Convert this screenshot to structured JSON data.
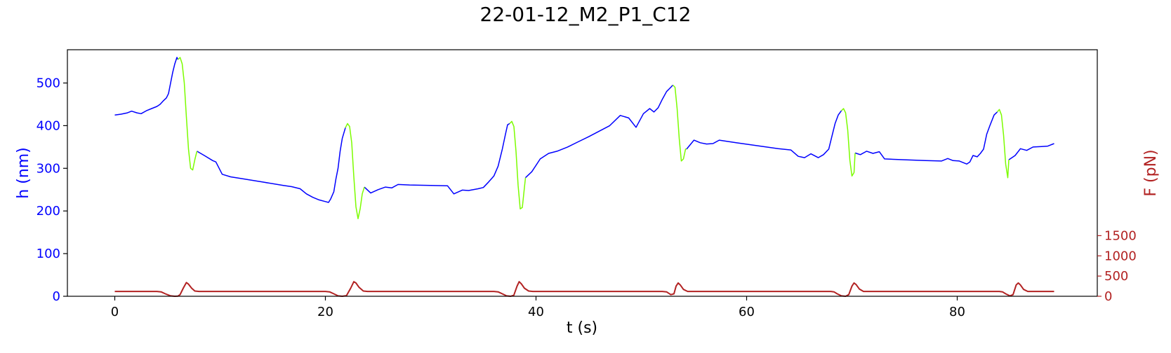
{
  "chart_data": {
    "type": "line",
    "title": "22-01-12_M2_P1_C12",
    "xlabel": "t (s)",
    "ylabel_left": "h (nm)",
    "ylabel_right": "F (pN)",
    "xlim": [
      -4.5,
      93.3
    ],
    "ylim_left": [
      0,
      578
    ],
    "ylim_right": [
      0,
      6100
    ],
    "x_ticks": [
      0,
      20,
      40,
      60,
      80
    ],
    "y_ticks_left": [
      0,
      100,
      200,
      300,
      400,
      500
    ],
    "y_ticks_right": [
      0,
      500,
      1000,
      1500
    ],
    "grid": false,
    "colors": {
      "h_approach": "#0000ff",
      "h_compression": "#7cfc00",
      "force": "#b22222",
      "left_axis": "#0000ff",
      "right_axis": "#b22222",
      "text": "#000000"
    },
    "series": [
      {
        "axis": "left",
        "color": "#0000ff",
        "segments": [
          [
            [
              0.0,
              425
            ],
            [
              0.6,
              427
            ],
            [
              1.2,
              430
            ],
            [
              1.6,
              434
            ],
            [
              2.1,
              430
            ],
            [
              2.5,
              428
            ],
            [
              3.0,
              435
            ],
            [
              3.5,
              440
            ],
            [
              4.0,
              445
            ],
            [
              4.3,
              450
            ],
            [
              4.6,
              458
            ],
            [
              4.9,
              465
            ],
            [
              5.1,
              475
            ],
            [
              5.3,
              500
            ],
            [
              5.5,
              525
            ],
            [
              5.7,
              545
            ],
            [
              5.9,
              560
            ],
            [
              6.0,
              555
            ]
          ],
          [
            [
              7.8,
              340
            ],
            [
              8.5,
              330
            ],
            [
              9.3,
              318
            ],
            [
              9.6,
              315
            ],
            [
              10.2,
              286
            ],
            [
              11.0,
              280
            ],
            [
              12.0,
              276
            ],
            [
              14.0,
              268
            ],
            [
              16.0,
              260
            ],
            [
              16.8,
              257
            ],
            [
              17.6,
              252
            ],
            [
              18.2,
              240
            ],
            [
              18.8,
              232
            ],
            [
              19.4,
              226
            ],
            [
              20.0,
              222
            ],
            [
              20.3,
              220
            ],
            [
              20.5,
              228
            ],
            [
              20.8,
              245
            ],
            [
              21.0,
              275
            ],
            [
              21.2,
              300
            ],
            [
              21.4,
              340
            ],
            [
              21.6,
              370
            ],
            [
              21.9,
              395
            ]
          ],
          [
            [
              23.7,
              256
            ],
            [
              24.3,
              242
            ],
            [
              25.0,
              250
            ],
            [
              25.7,
              256
            ],
            [
              26.3,
              254
            ],
            [
              26.9,
              262
            ],
            [
              28.0,
              261
            ],
            [
              30.0,
              260
            ],
            [
              31.6,
              259
            ],
            [
              32.2,
              240
            ],
            [
              33.0,
              249
            ],
            [
              33.6,
              248
            ],
            [
              34.5,
              252
            ],
            [
              35.0,
              255
            ],
            [
              35.5,
              268
            ],
            [
              36.0,
              282
            ],
            [
              36.4,
              305
            ],
            [
              36.8,
              345
            ],
            [
              37.1,
              380
            ],
            [
              37.3,
              402
            ],
            [
              37.5,
              405
            ]
          ],
          [
            [
              39.0,
              278
            ],
            [
              39.6,
              292
            ],
            [
              40.4,
              322
            ],
            [
              41.2,
              335
            ],
            [
              42.0,
              340
            ],
            [
              43.0,
              350
            ],
            [
              44.0,
              362
            ],
            [
              45.0,
              374
            ],
            [
              46.0,
              387
            ],
            [
              47.0,
              400
            ],
            [
              48.0,
              424
            ],
            [
              48.8,
              418
            ],
            [
              49.5,
              396
            ],
            [
              50.2,
              428
            ],
            [
              50.8,
              440
            ],
            [
              51.2,
              432
            ],
            [
              51.6,
              442
            ],
            [
              52.0,
              462
            ],
            [
              52.4,
              480
            ],
            [
              52.8,
              490
            ],
            [
              53.0,
              495
            ]
          ],
          [
            [
              54.3,
              345
            ],
            [
              55.0,
              366
            ],
            [
              55.6,
              360
            ],
            [
              56.2,
              357
            ],
            [
              56.8,
              358
            ],
            [
              57.4,
              366
            ],
            [
              59.0,
              360
            ],
            [
              61.0,
              353
            ],
            [
              63.0,
              346
            ],
            [
              64.2,
              343
            ],
            [
              64.9,
              328
            ],
            [
              65.5,
              325
            ],
            [
              66.1,
              334
            ],
            [
              66.8,
              325
            ],
            [
              67.3,
              332
            ],
            [
              67.8,
              345
            ],
            [
              68.1,
              375
            ],
            [
              68.4,
              405
            ],
            [
              68.7,
              425
            ],
            [
              69.0,
              435
            ]
          ],
          [
            [
              70.3,
              336
            ],
            [
              70.8,
              332
            ],
            [
              71.4,
              340
            ],
            [
              72.0,
              335
            ],
            [
              72.6,
              339
            ],
            [
              73.1,
              322
            ],
            [
              75.0,
              320
            ],
            [
              77.0,
              318
            ],
            [
              78.5,
              317
            ],
            [
              79.1,
              323
            ],
            [
              79.6,
              318
            ],
            [
              80.2,
              317
            ],
            [
              80.9,
              310
            ],
            [
              81.2,
              315
            ],
            [
              81.5,
              330
            ],
            [
              81.9,
              327
            ],
            [
              82.2,
              335
            ],
            [
              82.5,
              345
            ],
            [
              82.8,
              380
            ],
            [
              83.1,
              400
            ],
            [
              83.5,
              425
            ],
            [
              83.8,
              432
            ]
          ],
          [
            [
              84.9,
              320
            ],
            [
              85.5,
              330
            ],
            [
              86.0,
              346
            ],
            [
              86.6,
              342
            ],
            [
              87.2,
              350
            ],
            [
              88.0,
              351
            ],
            [
              88.6,
              352
            ],
            [
              89.2,
              358
            ]
          ]
        ]
      },
      {
        "axis": "left",
        "color": "#7cfc00",
        "segments": [
          [
            [
              6.0,
              555
            ],
            [
              6.2,
              560
            ],
            [
              6.4,
              545
            ],
            [
              6.6,
              500
            ],
            [
              6.8,
              420
            ],
            [
              7.0,
              345
            ],
            [
              7.2,
              300
            ],
            [
              7.4,
              296
            ],
            [
              7.6,
              320
            ],
            [
              7.8,
              340
            ]
          ],
          [
            [
              21.9,
              395
            ],
            [
              22.1,
              405
            ],
            [
              22.3,
              398
            ],
            [
              22.5,
              360
            ],
            [
              22.7,
              280
            ],
            [
              22.9,
              210
            ],
            [
              23.1,
              182
            ],
            [
              23.3,
              205
            ],
            [
              23.5,
              240
            ],
            [
              23.7,
              256
            ]
          ],
          [
            [
              37.5,
              405
            ],
            [
              37.7,
              410
            ],
            [
              37.9,
              398
            ],
            [
              38.1,
              340
            ],
            [
              38.3,
              260
            ],
            [
              38.5,
              205
            ],
            [
              38.7,
              208
            ],
            [
              38.9,
              255
            ],
            [
              39.0,
              278
            ]
          ],
          [
            [
              53.0,
              495
            ],
            [
              53.2,
              490
            ],
            [
              53.4,
              440
            ],
            [
              53.6,
              370
            ],
            [
              53.8,
              317
            ],
            [
              54.0,
              322
            ],
            [
              54.2,
              345
            ],
            [
              54.3,
              345
            ]
          ],
          [
            [
              69.0,
              435
            ],
            [
              69.2,
              440
            ],
            [
              69.4,
              430
            ],
            [
              69.6,
              390
            ],
            [
              69.8,
              320
            ],
            [
              70.0,
              282
            ],
            [
              70.2,
              290
            ],
            [
              70.3,
              336
            ]
          ],
          [
            [
              83.8,
              432
            ],
            [
              84.0,
              438
            ],
            [
              84.2,
              425
            ],
            [
              84.4,
              378
            ],
            [
              84.6,
              310
            ],
            [
              84.8,
              278
            ],
            [
              84.9,
              320
            ]
          ]
        ]
      },
      {
        "axis": "right",
        "color": "#b22222",
        "segments": [
          [
            [
              0.0,
              120
            ],
            [
              4.0,
              120
            ],
            [
              4.4,
              110
            ],
            [
              4.8,
              60
            ],
            [
              5.3,
              10
            ],
            [
              5.7,
              0
            ],
            [
              6.0,
              5
            ],
            [
              6.2,
              40
            ],
            [
              6.5,
              200
            ],
            [
              6.8,
              340
            ],
            [
              7.0,
              300
            ],
            [
              7.3,
              200
            ],
            [
              7.6,
              130
            ],
            [
              8.0,
              120
            ],
            [
              20.0,
              120
            ],
            [
              20.4,
              110
            ],
            [
              20.8,
              60
            ],
            [
              21.2,
              10
            ],
            [
              21.6,
              0
            ],
            [
              22.0,
              15
            ],
            [
              22.4,
              200
            ],
            [
              22.7,
              360
            ],
            [
              22.9,
              330
            ],
            [
              23.2,
              220
            ],
            [
              23.6,
              130
            ],
            [
              24.0,
              120
            ],
            [
              36.0,
              120
            ],
            [
              36.4,
              110
            ],
            [
              36.8,
              60
            ],
            [
              37.2,
              10
            ],
            [
              37.6,
              0
            ],
            [
              37.9,
              30
            ],
            [
              38.2,
              250
            ],
            [
              38.4,
              360
            ],
            [
              38.6,
              310
            ],
            [
              38.9,
              200
            ],
            [
              39.3,
              130
            ],
            [
              39.7,
              120
            ],
            [
              52.0,
              120
            ],
            [
              52.4,
              110
            ],
            [
              52.8,
              40
            ],
            [
              53.1,
              60
            ],
            [
              53.3,
              250
            ],
            [
              53.5,
              330
            ],
            [
              53.7,
              280
            ],
            [
              54.0,
              170
            ],
            [
              54.4,
              120
            ],
            [
              68.0,
              120
            ],
            [
              68.3,
              110
            ],
            [
              68.6,
              60
            ],
            [
              69.0,
              10
            ],
            [
              69.4,
              0
            ],
            [
              69.7,
              40
            ],
            [
              70.0,
              250
            ],
            [
              70.2,
              330
            ],
            [
              70.4,
              290
            ],
            [
              70.7,
              180
            ],
            [
              71.1,
              120
            ],
            [
              84.0,
              120
            ],
            [
              84.3,
              110
            ],
            [
              84.6,
              60
            ],
            [
              85.0,
              10
            ],
            [
              85.3,
              40
            ],
            [
              85.6,
              280
            ],
            [
              85.8,
              330
            ],
            [
              86.0,
              280
            ],
            [
              86.3,
              170
            ],
            [
              86.7,
              120
            ],
            [
              89.2,
              120
            ]
          ]
        ]
      }
    ]
  }
}
